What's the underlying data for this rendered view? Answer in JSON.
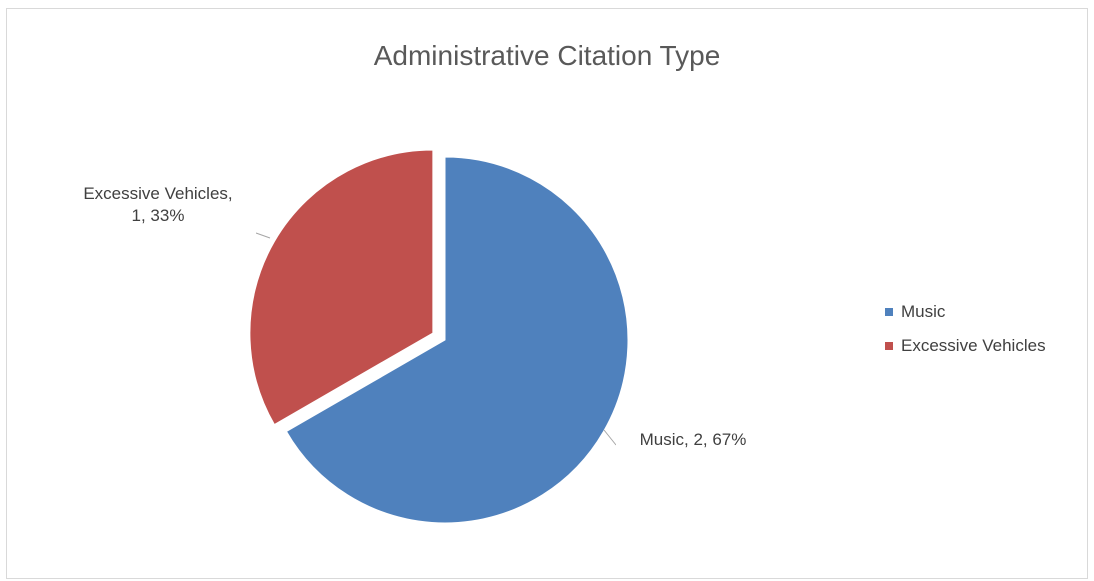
{
  "chart_data": {
    "type": "pie",
    "title": "Administrative Citation Type",
    "categories": [
      "Music",
      "Excessive Vehicles"
    ],
    "values": [
      2,
      1
    ],
    "percentages": [
      "67%",
      "33%"
    ],
    "colors": [
      "#4F81BD",
      "#C0504D"
    ],
    "exploded": [
      false,
      true
    ],
    "legend_position": "right",
    "data_labels": [
      {
        "line1": "Music, 2, 67%",
        "line2": ""
      },
      {
        "line1": "Excessive Vehicles,",
        "line2": "1, 33%"
      }
    ]
  }
}
